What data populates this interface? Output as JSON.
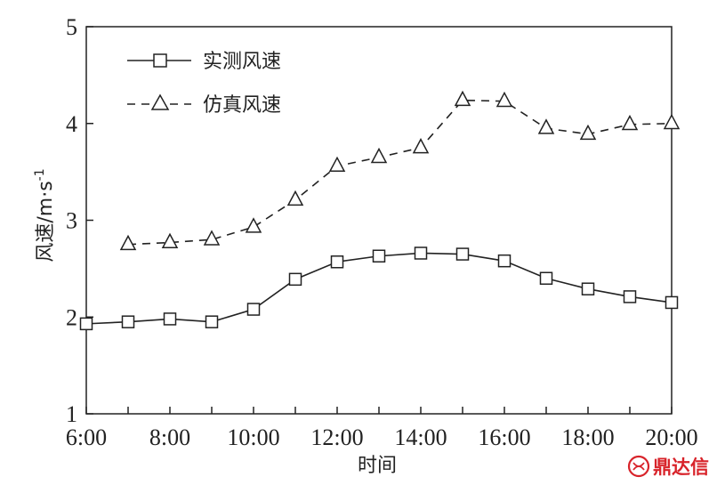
{
  "chart_data": {
    "type": "line",
    "x": [
      "6:00",
      "7:00",
      "8:00",
      "9:00",
      "10:00",
      "11:00",
      "12:00",
      "13:00",
      "14:00",
      "15:00",
      "16:00",
      "17:00",
      "18:00",
      "19:00",
      "20:00"
    ],
    "x_tick_labels": [
      "6:00",
      "8:00",
      "10:00",
      "12:00",
      "14:00",
      "16:00",
      "18:00",
      "20:00"
    ],
    "y_tick_labels": [
      "1",
      "2",
      "3",
      "4",
      "5"
    ],
    "ylim": [
      1,
      5
    ],
    "xlabel": "时间",
    "ylabel": "风速/m·s",
    "ylabel_superscript": "-1",
    "legend_position": "top-left",
    "grid": false,
    "series": [
      {
        "name": "实测风速",
        "marker": "square",
        "line": "solid",
        "values": [
          1.93,
          1.95,
          1.98,
          1.95,
          2.08,
          2.39,
          2.57,
          2.63,
          2.66,
          2.65,
          2.58,
          2.4,
          2.29,
          2.21,
          2.15
        ]
      },
      {
        "name": "仿真风速",
        "marker": "triangle",
        "line": "dashed",
        "values": [
          null,
          2.75,
          2.77,
          2.8,
          2.93,
          3.21,
          3.56,
          3.65,
          3.75,
          4.24,
          4.23,
          3.95,
          3.89,
          3.99,
          4.0
        ]
      }
    ]
  },
  "watermark": {
    "text": "鼎达信",
    "color": "#d8232a"
  }
}
